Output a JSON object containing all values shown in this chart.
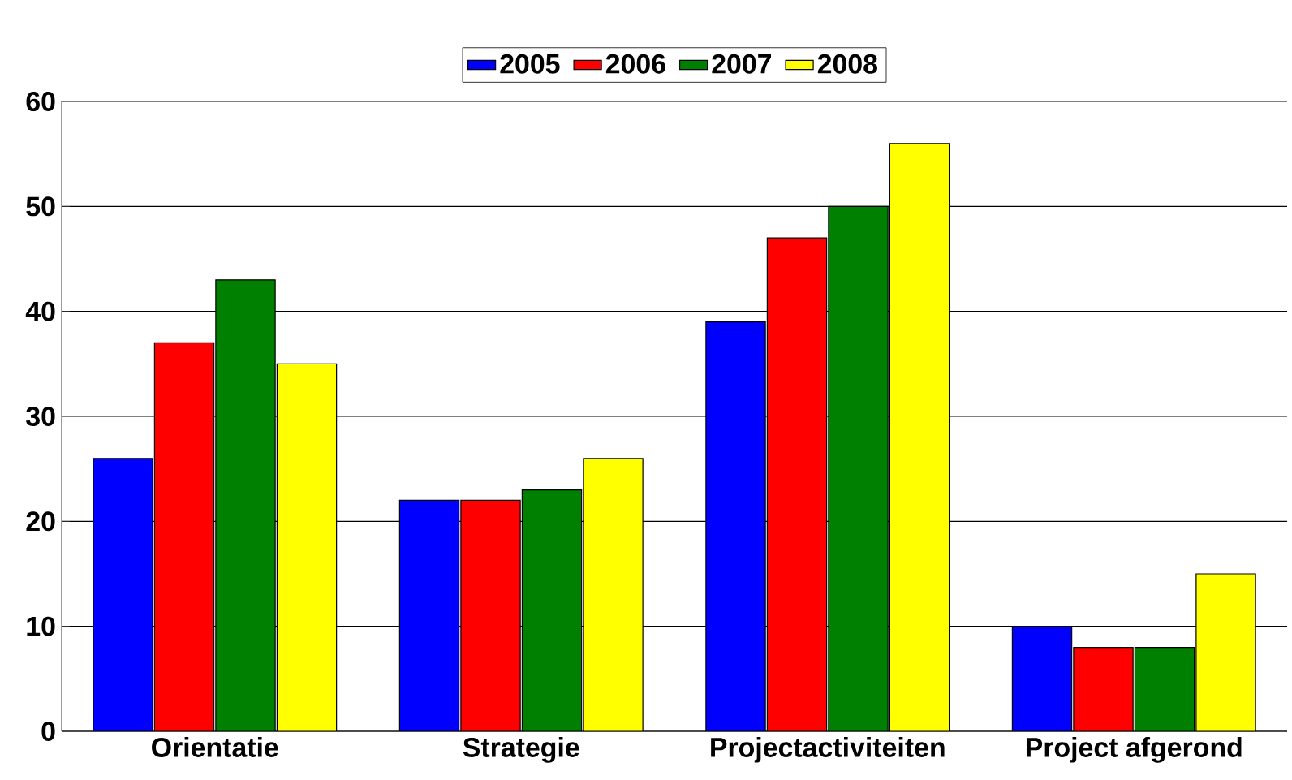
{
  "chart_data": {
    "type": "bar",
    "categories": [
      "Orientatie",
      "Strategie",
      "Projectactiviteiten",
      "Project afgerond"
    ],
    "series": [
      {
        "name": "2005",
        "color": "#0000ff",
        "values": [
          26,
          22,
          39,
          10
        ]
      },
      {
        "name": "2006",
        "color": "#ff0000",
        "values": [
          37,
          22,
          47,
          8
        ]
      },
      {
        "name": "2007",
        "color": "#008000",
        "values": [
          43,
          23,
          50,
          8
        ]
      },
      {
        "name": "2008",
        "color": "#ffff00",
        "values": [
          35,
          26,
          56,
          15
        ]
      }
    ],
    "ylim": [
      0,
      60
    ],
    "yticks": [
      0,
      10,
      20,
      30,
      40,
      50,
      60
    ],
    "grid": "y",
    "legend": "top"
  }
}
